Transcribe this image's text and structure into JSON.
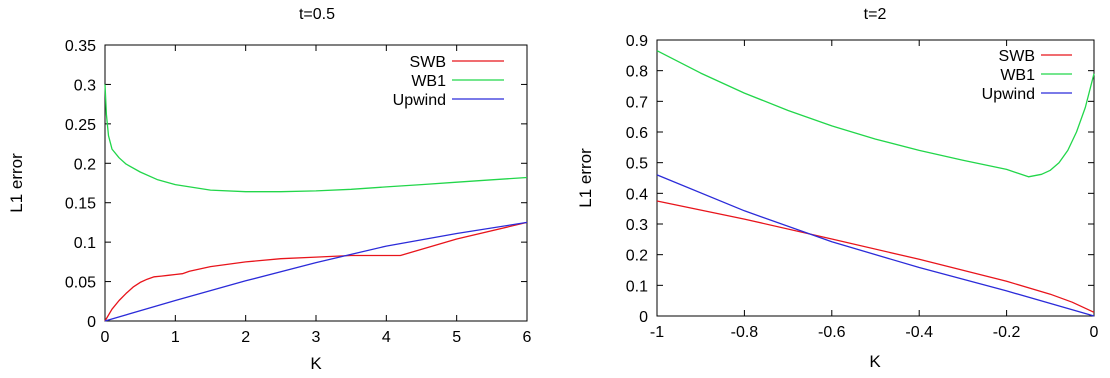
{
  "chart_data": [
    {
      "type": "line",
      "title": "t=0.5",
      "xlabel": "K",
      "ylabel": "L1 error",
      "xlim": [
        0,
        6
      ],
      "ylim": [
        0,
        0.35
      ],
      "xticks": [
        0,
        1,
        2,
        3,
        4,
        5,
        6
      ],
      "yticks": [
        0,
        0.05,
        0.1,
        0.15,
        0.2,
        0.25,
        0.3,
        0.35
      ],
      "tick_labels_x": [
        "0",
        "1",
        "2",
        "3",
        "4",
        "5",
        "6"
      ],
      "tick_labels_y": [
        "0",
        "0.05",
        "0.1",
        "0.15",
        "0.2",
        "0.25",
        "0.3",
        "0.35"
      ],
      "grid": false,
      "legend_position": "top-right",
      "series": [
        {
          "name": "SWB",
          "color": "#e8141b",
          "x": [
            0,
            0.1,
            0.2,
            0.3,
            0.4,
            0.5,
            0.6,
            0.7,
            0.8,
            0.9,
            1.0,
            1.1,
            1.2,
            1.5,
            2.0,
            2.5,
            3.0,
            3.5,
            4.0,
            4.2,
            5.0,
            6.0
          ],
          "y": [
            0,
            0.015,
            0.026,
            0.035,
            0.043,
            0.049,
            0.053,
            0.056,
            0.057,
            0.058,
            0.059,
            0.06,
            0.063,
            0.069,
            0.075,
            0.079,
            0.081,
            0.083,
            0.083,
            0.083,
            0.104,
            0.125
          ]
        },
        {
          "name": "WB1",
          "color": "#22d64a",
          "x": [
            0,
            0.02,
            0.05,
            0.1,
            0.2,
            0.3,
            0.5,
            0.75,
            1.0,
            1.5,
            2.0,
            2.5,
            3.0,
            3.5,
            4.0,
            4.5,
            5.0,
            5.5,
            6.0
          ],
          "y": [
            0.3,
            0.262,
            0.235,
            0.218,
            0.207,
            0.199,
            0.189,
            0.179,
            0.173,
            0.166,
            0.164,
            0.164,
            0.165,
            0.167,
            0.17,
            0.173,
            0.176,
            0.179,
            0.182
          ]
        },
        {
          "name": "Upwind",
          "color": "#2b2bd9",
          "x": [
            0,
            1,
            2,
            3,
            4,
            5,
            6
          ],
          "y": [
            0,
            0.026,
            0.051,
            0.074,
            0.095,
            0.111,
            0.125
          ]
        }
      ]
    },
    {
      "type": "line",
      "title": "t=2",
      "xlabel": "K",
      "ylabel": "L1 error",
      "xlim": [
        -1,
        0
      ],
      "ylim": [
        0,
        0.9
      ],
      "xticks": [
        -1,
        -0.8,
        -0.6,
        -0.4,
        -0.2,
        0
      ],
      "yticks": [
        0,
        0.1,
        0.2,
        0.3,
        0.4,
        0.5,
        0.6,
        0.7,
        0.8,
        0.9
      ],
      "tick_labels_x": [
        "-1",
        "-0.8",
        "-0.6",
        "-0.4",
        "-0.2",
        "0"
      ],
      "tick_labels_y": [
        "0",
        "0.1",
        "0.2",
        "0.3",
        "0.4",
        "0.5",
        "0.6",
        "0.7",
        "0.8",
        "0.9"
      ],
      "grid": false,
      "legend_position": "top-right",
      "series": [
        {
          "name": "SWB",
          "color": "#e8141b",
          "x": [
            -1,
            -0.8,
            -0.6,
            -0.4,
            -0.2,
            -0.1,
            -0.05,
            0
          ],
          "y": [
            0.375,
            0.316,
            0.251,
            0.185,
            0.113,
            0.071,
            0.045,
            0.012
          ]
        },
        {
          "name": "WB1",
          "color": "#22d64a",
          "x": [
            -1,
            -0.9,
            -0.8,
            -0.7,
            -0.6,
            -0.5,
            -0.4,
            -0.3,
            -0.2,
            -0.15,
            -0.12,
            -0.1,
            -0.08,
            -0.06,
            -0.04,
            -0.02,
            0
          ],
          "y": [
            0.865,
            0.792,
            0.727,
            0.67,
            0.62,
            0.577,
            0.54,
            0.508,
            0.478,
            0.454,
            0.462,
            0.475,
            0.5,
            0.54,
            0.6,
            0.68,
            0.79
          ]
        },
        {
          "name": "Upwind",
          "color": "#2b2bd9",
          "x": [
            -1,
            -0.8,
            -0.6,
            -0.4,
            -0.2,
            0
          ],
          "y": [
            0.46,
            0.343,
            0.242,
            0.158,
            0.082,
            0.0
          ]
        }
      ]
    }
  ]
}
